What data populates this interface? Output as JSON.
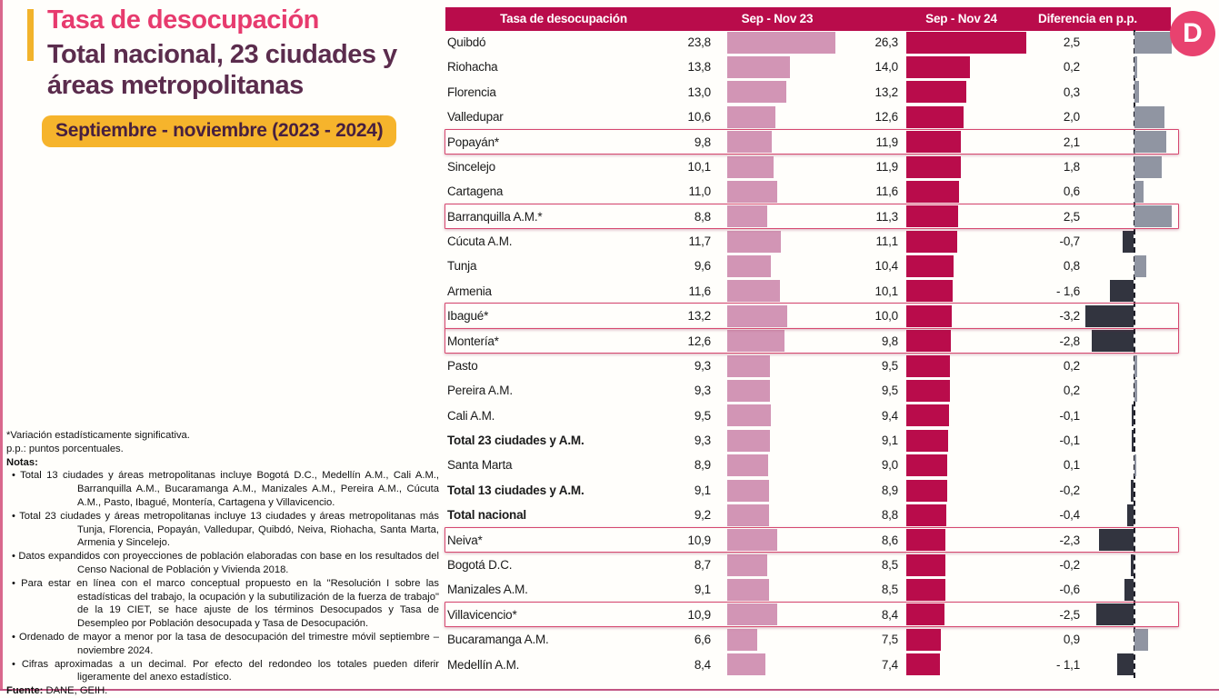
{
  "page": {
    "title": "Tasa de desocupación",
    "subtitle": "Total nacional, 23 ciudades y áreas metropolitanas",
    "period_badge": "Septiembre - noviembre (2023 - 2024)",
    "logo_letter": "D"
  },
  "notes": {
    "line1": "*Variación estadísticamente significativa.",
    "line2": "p.p.: puntos porcentuales.",
    "notes_label": "Notas:",
    "bullets": [
      "Total 13 ciudades y áreas metropolitanas incluye Bogotá D.C., Medellín A.M., Cali A.M., Barranquilla A.M., Bucaramanga A.M., Manizales A.M., Pereira A.M., Cúcuta A.M., Pasto, Ibagué, Montería, Cartagena y Villavicencio.",
      "Total 23 ciudades y áreas metropolitanas incluye 13 ciudades y áreas metropolitanas más Tunja, Florencia, Popayán, Valledupar, Quibdó, Neiva, Riohacha, Santa Marta, Armenia y Sincelejo.",
      "Datos expandidos con proyecciones de población elaboradas con base en los resultados del Censo Nacional de Población y Vivienda 2018.",
      "Para estar en línea con el marco conceptual propuesto en la \"Resolución I sobre las estadísticas del trabajo, la ocupación y la subutilización de la fuerza de trabajo\" de la 19 CIET, se hace ajuste de los términos Desocupados y Tasa de Desempleo por Población desocupada y Tasa de Desocupación.",
      "Ordenado de mayor a menor por la tasa de desocupación del trimestre móvil septiembre – noviembre 2024.",
      "Cifras aproximadas a un decimal. Por efecto del redondeo los totales pueden diferir ligeramente del anexo estadístico."
    ],
    "source_label": "Fuente:",
    "source_text": " DANE, GEIH."
  },
  "chart_data": {
    "type": "bar",
    "orientation": "horizontal",
    "title": "Tasa de desocupación",
    "subtitle": "Total nacional, 23 ciudades y áreas metropolitanas",
    "period": "Septiembre - noviembre (2023 - 2024)",
    "columns": [
      "Tasa de desocupación",
      "Sep - Nov 23",
      "Sep - Nov 24",
      "Diferencia en p.p."
    ],
    "series": [
      {
        "name": "Sep - Nov 23",
        "color": "#d295b5"
      },
      {
        "name": "Sep - Nov 24",
        "color": "#b90c4b"
      }
    ],
    "colors": {
      "header_bg": "#b90c4b",
      "positive_diff": "#9095a2",
      "negative_diff": "#32343f",
      "highlight_border": "#d6486f"
    },
    "value_range": [
      0,
      26.3
    ],
    "diff_range": [
      -3.2,
      2.5
    ],
    "rows": [
      {
        "label": "Quibdó",
        "v23": 23.8,
        "v24": 26.3,
        "diff": 2.5,
        "v23_text": "23,8",
        "v24_text": "26,3",
        "diff_text": "2,5",
        "highlight": false,
        "bold": false
      },
      {
        "label": "Riohacha",
        "v23": 13.8,
        "v24": 14.0,
        "diff": 0.2,
        "v23_text": "13,8",
        "v24_text": "14,0",
        "diff_text": "0,2",
        "highlight": false,
        "bold": false
      },
      {
        "label": "Florencia",
        "v23": 13.0,
        "v24": 13.2,
        "diff": 0.3,
        "v23_text": "13,0",
        "v24_text": "13,2",
        "diff_text": "0,3",
        "highlight": false,
        "bold": false
      },
      {
        "label": "Valledupar",
        "v23": 10.6,
        "v24": 12.6,
        "diff": 2.0,
        "v23_text": "10,6",
        "v24_text": "12,6",
        "diff_text": "2,0",
        "highlight": false,
        "bold": false
      },
      {
        "label": "Popayán*",
        "v23": 9.8,
        "v24": 11.9,
        "diff": 2.1,
        "v23_text": "9,8",
        "v24_text": "11,9",
        "diff_text": "2,1",
        "highlight": true,
        "bold": false
      },
      {
        "label": "Sincelejo",
        "v23": 10.1,
        "v24": 11.9,
        "diff": 1.8,
        "v23_text": "10,1",
        "v24_text": "11,9",
        "diff_text": "1,8",
        "highlight": false,
        "bold": false
      },
      {
        "label": "Cartagena",
        "v23": 11.0,
        "v24": 11.6,
        "diff": 0.6,
        "v23_text": "11,0",
        "v24_text": "11,6",
        "diff_text": "0,6",
        "highlight": false,
        "bold": false
      },
      {
        "label": "Barranquilla A.M.*",
        "v23": 8.8,
        "v24": 11.3,
        "diff": 2.5,
        "v23_text": "8,8",
        "v24_text": "11,3",
        "diff_text": "2,5",
        "highlight": true,
        "bold": false
      },
      {
        "label": "Cúcuta A.M.",
        "v23": 11.7,
        "v24": 11.1,
        "diff": -0.7,
        "v23_text": "11,7",
        "v24_text": "11,1",
        "diff_text": "-0,7",
        "highlight": false,
        "bold": false
      },
      {
        "label": "Tunja",
        "v23": 9.6,
        "v24": 10.4,
        "diff": 0.8,
        "v23_text": "9,6",
        "v24_text": "10,4",
        "diff_text": "0,8",
        "highlight": false,
        "bold": false
      },
      {
        "label": "Armenia",
        "v23": 11.6,
        "v24": 10.1,
        "diff": -1.6,
        "v23_text": "11,6",
        "v24_text": "10,1",
        "diff_text": "- 1,6",
        "highlight": false,
        "bold": false
      },
      {
        "label": "Ibagué*",
        "v23": 13.2,
        "v24": 10.0,
        "diff": -3.2,
        "v23_text": "13,2",
        "v24_text": "10,0",
        "diff_text": "-3,2",
        "highlight": true,
        "bold": false
      },
      {
        "label": "Montería*",
        "v23": 12.6,
        "v24": 9.8,
        "diff": -2.8,
        "v23_text": "12,6",
        "v24_text": "9,8",
        "diff_text": "-2,8",
        "highlight": true,
        "bold": false
      },
      {
        "label": "Pasto",
        "v23": 9.3,
        "v24": 9.5,
        "diff": 0.2,
        "v23_text": "9,3",
        "v24_text": "9,5",
        "diff_text": "0,2",
        "highlight": false,
        "bold": false
      },
      {
        "label": "Pereira A.M.",
        "v23": 9.3,
        "v24": 9.5,
        "diff": 0.2,
        "v23_text": "9,3",
        "v24_text": "9,5",
        "diff_text": "0,2",
        "highlight": false,
        "bold": false
      },
      {
        "label": "Cali A.M.",
        "v23": 9.5,
        "v24": 9.4,
        "diff": -0.1,
        "v23_text": "9,5",
        "v24_text": "9,4",
        "diff_text": "-0,1",
        "highlight": false,
        "bold": false
      },
      {
        "label": "Total 23 ciudades y A.M.",
        "v23": 9.3,
        "v24": 9.1,
        "diff": -0.1,
        "v23_text": "9,3",
        "v24_text": "9,1",
        "diff_text": "-0,1",
        "highlight": false,
        "bold": true
      },
      {
        "label": "Santa Marta",
        "v23": 8.9,
        "v24": 9.0,
        "diff": 0.1,
        "v23_text": "8,9",
        "v24_text": "9,0",
        "diff_text": "0,1",
        "highlight": false,
        "bold": false
      },
      {
        "label": "Total 13 ciudades y A.M.",
        "v23": 9.1,
        "v24": 8.9,
        "diff": -0.2,
        "v23_text": "9,1",
        "v24_text": "8,9",
        "diff_text": "-0,2",
        "highlight": false,
        "bold": true
      },
      {
        "label": "Total nacional",
        "v23": 9.2,
        "v24": 8.8,
        "diff": -0.4,
        "v23_text": "9,2",
        "v24_text": "8,8",
        "diff_text": "-0,4",
        "highlight": false,
        "bold": true
      },
      {
        "label": "Neiva*",
        "v23": 10.9,
        "v24": 8.6,
        "diff": -2.3,
        "v23_text": "10,9",
        "v24_text": "8,6",
        "diff_text": "-2,3",
        "highlight": true,
        "bold": false
      },
      {
        "label": "Bogotá D.C.",
        "v23": 8.7,
        "v24": 8.5,
        "diff": -0.2,
        "v23_text": "8,7",
        "v24_text": "8,5",
        "diff_text": "-0,2",
        "highlight": false,
        "bold": false
      },
      {
        "label": "Manizales A.M.",
        "v23": 9.1,
        "v24": 8.5,
        "diff": -0.6,
        "v23_text": "9,1",
        "v24_text": "8,5",
        "diff_text": "-0,6",
        "highlight": false,
        "bold": false
      },
      {
        "label": "Villavicencio*",
        "v23": 10.9,
        "v24": 8.4,
        "diff": -2.5,
        "v23_text": "10,9",
        "v24_text": "8,4",
        "diff_text": "-2,5",
        "highlight": true,
        "bold": false
      },
      {
        "label": "Bucaramanga A.M.",
        "v23": 6.6,
        "v24": 7.5,
        "diff": 0.9,
        "v23_text": "6,6",
        "v24_text": "7,5",
        "diff_text": "0,9",
        "highlight": false,
        "bold": false
      },
      {
        "label": "Medellín A.M.",
        "v23": 8.4,
        "v24": 7.4,
        "diff": -1.1,
        "v23_text": "8,4",
        "v24_text": "7,4",
        "diff_text": "- 1,1",
        "highlight": false,
        "bold": false
      }
    ]
  }
}
